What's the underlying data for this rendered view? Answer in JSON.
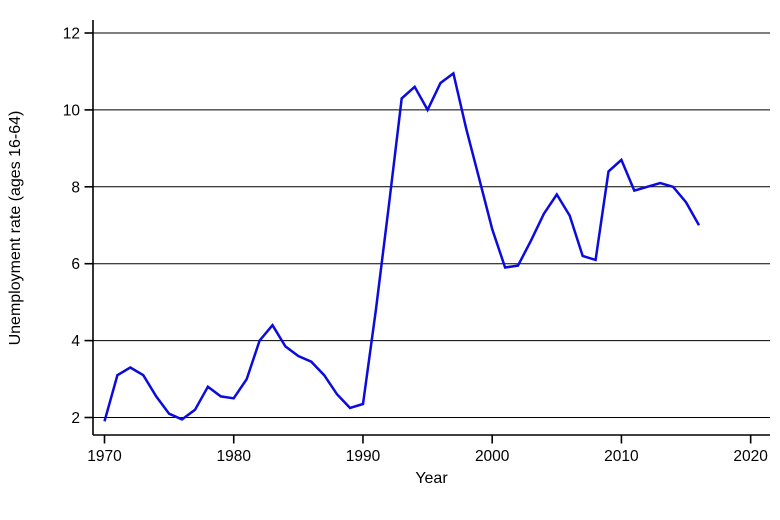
{
  "chart_data": {
    "type": "line",
    "title": "",
    "xlabel": "Year",
    "ylabel": "Unemployment rate (ages 16-64)",
    "x": [
      1970,
      1971,
      1972,
      1973,
      1974,
      1975,
      1976,
      1977,
      1978,
      1979,
      1980,
      1981,
      1982,
      1983,
      1984,
      1985,
      1986,
      1987,
      1988,
      1989,
      1990,
      1991,
      1992,
      1993,
      1994,
      1995,
      1996,
      1997,
      1998,
      1999,
      2000,
      2001,
      2002,
      2003,
      2004,
      2005,
      2006,
      2007,
      2008,
      2009,
      2010,
      2011,
      2012,
      2013,
      2014,
      2015,
      2016
    ],
    "series": [
      {
        "name": "Unemployment rate (ages 16-64)",
        "values": [
          1.9,
          3.1,
          3.3,
          3.1,
          2.55,
          2.1,
          1.95,
          2.2,
          2.8,
          2.55,
          2.5,
          3.0,
          4.0,
          4.4,
          3.85,
          3.6,
          3.45,
          3.1,
          2.6,
          2.25,
          2.35,
          4.8,
          7.5,
          10.3,
          10.6,
          10.0,
          10.7,
          10.95,
          9.5,
          8.2,
          6.9,
          5.9,
          5.95,
          6.6,
          7.3,
          7.8,
          7.25,
          6.2,
          6.1,
          8.4,
          8.7,
          7.9,
          8.0,
          8.1,
          8.0,
          7.6,
          7.0
        ]
      }
    ],
    "x_ticks": [
      1970,
      1980,
      1990,
      2000,
      2010,
      2020
    ],
    "y_ticks": [
      2,
      4,
      6,
      8,
      10,
      12
    ],
    "xlim": [
      1969.1,
      2021.5
    ],
    "ylim": [
      1.55,
      12.35
    ],
    "grid": "horizontal-only",
    "legend": "none",
    "colors": {
      "line": "#0b0bdd",
      "axis": "#000000",
      "grid": "#000000",
      "text": "#000000",
      "background": "#ffffff"
    }
  }
}
